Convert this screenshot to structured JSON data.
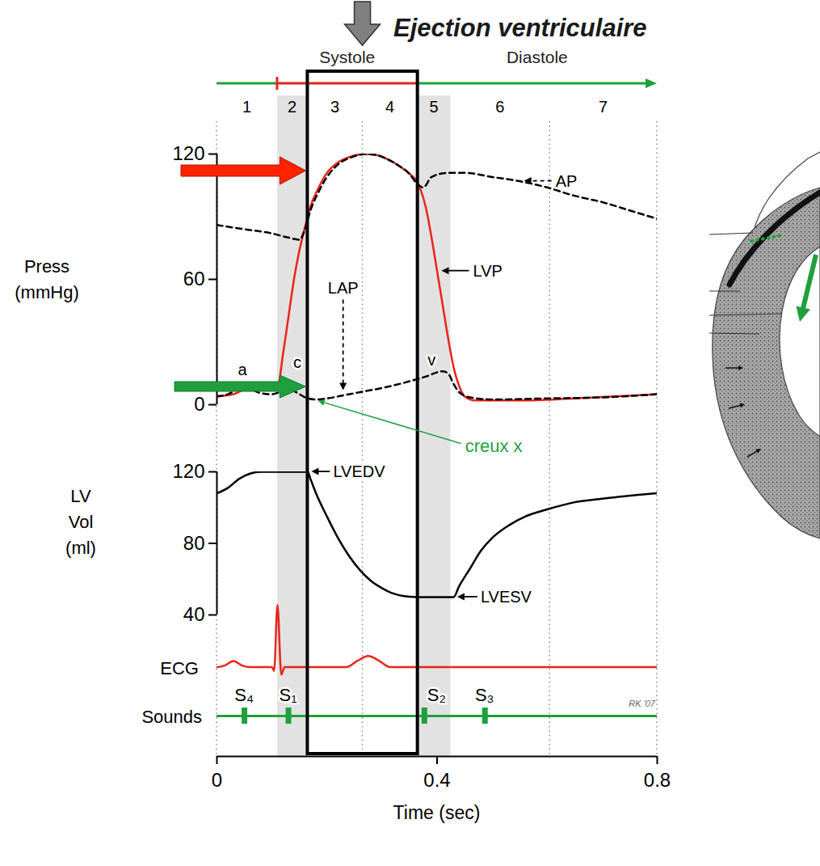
{
  "chart_data": {
    "type": "line",
    "title": "Ejection ventriculaire",
    "xlabel": "Time (sec)",
    "xlim": [
      0,
      0.8
    ],
    "xticks": [
      0,
      0.4,
      0.8
    ],
    "credit": "RK '07",
    "cycle": [
      {
        "label": null,
        "start": 0,
        "end": 0.11,
        "color": "#1fa03c"
      },
      {
        "label": "Systole",
        "start": 0.11,
        "end": 0.365,
        "color": "#e8251b"
      },
      {
        "label": "Diastole",
        "start": 0.365,
        "end": 0.8,
        "color": "#1fa03c"
      }
    ],
    "phases": {
      "labels": [
        "1",
        "2",
        "3",
        "4",
        "5",
        "6",
        "7"
      ],
      "bounds": [
        0,
        0.11,
        0.165,
        0.265,
        0.365,
        0.425,
        0.605,
        0.8
      ],
      "shaded": [
        "2",
        "5"
      ],
      "highlight": [
        "3",
        "4"
      ]
    },
    "panels": [
      {
        "ylabel": "Press (mmHg)",
        "ylim": [
          0,
          120
        ],
        "yticks": [
          0,
          60,
          120
        ],
        "tick_labels": "y",
        "series": [
          {
            "name": "LVP",
            "color": "#e8251b",
            "line_style": "solid",
            "label_x": 0.4,
            "x": [
              0,
              0.03,
              0.06,
              0.09,
              0.11,
              0.12,
              0.13,
              0.14,
              0.15,
              0.16,
              0.17,
              0.185,
              0.2,
              0.22,
              0.245,
              0.27,
              0.29,
              0.31,
              0.33,
              0.35,
              0.363,
              0.37,
              0.38,
              0.39,
              0.4,
              0.41,
              0.42,
              0.43,
              0.44,
              0.45,
              0.47,
              0.55,
              0.65,
              0.8
            ],
            "values": [
              4,
              5,
              8,
              7,
              8,
              24,
              42,
              60,
              74,
              85,
              95,
              104,
              111,
              116,
              119,
              120,
              119.5,
              117.5,
              114.5,
              110.5,
              107,
              103,
              94,
              80,
              64,
              48,
              32,
              18,
              9,
              4,
              2,
              2,
              3,
              5
            ]
          },
          {
            "name": "AP",
            "color": "#000000",
            "line_style": "dashed",
            "label_x": 0.55,
            "x": [
              0,
              0.05,
              0.1,
              0.13,
              0.15,
              0.16,
              0.17,
              0.185,
              0.2,
              0.22,
              0.245,
              0.27,
              0.29,
              0.31,
              0.33,
              0.35,
              0.363,
              0.375,
              0.39,
              0.42,
              0.45,
              0.5,
              0.55,
              0.6,
              0.65,
              0.7,
              0.75,
              0.8
            ],
            "values": [
              86,
              84,
              82,
              80,
              79,
              84,
              93,
              102,
              109,
              115,
              118.5,
              120,
              119.5,
              117.5,
              114.5,
              110.5,
              106,
              104,
              109,
              111,
              111,
              109,
              107,
              104,
              100,
              97,
              93,
              89
            ]
          },
          {
            "name": "LAP",
            "color": "#000000",
            "line_style": "dashed",
            "label_x": 0.23,
            "x": [
              0,
              0.02,
              0.035,
              0.05,
              0.065,
              0.08,
              0.1,
              0.12,
              0.135,
              0.15,
              0.165,
              0.18,
              0.2,
              0.23,
              0.26,
              0.3,
              0.34,
              0.38,
              0.41,
              0.42,
              0.43,
              0.44,
              0.46,
              0.5,
              0.6,
              0.7,
              0.8
            ],
            "values": [
              4,
              5,
              7,
              8,
              7,
              5.5,
              5,
              6.5,
              7,
              5,
              3,
              2.5,
              3,
              4.5,
              6,
              8,
              10.5,
              13.5,
              16,
              15,
              10,
              6,
              3.5,
              2.5,
              3,
              3.5,
              5
            ]
          }
        ],
        "annotations": [
          {
            "text": "a",
            "x": 0.05,
            "y": 8
          },
          {
            "text": "c",
            "x": 0.135,
            "y": 7
          },
          {
            "text": "v",
            "x": 0.41,
            "y": 16
          },
          {
            "text": "creux x",
            "x": 0.18,
            "y": 2.5,
            "color": "#1fa03c"
          }
        ]
      },
      {
        "ylabel": "LV Vol (ml)",
        "ylim": [
          40,
          120
        ],
        "yticks": [
          40,
          80,
          120
        ],
        "tick_labels": "y",
        "series": [
          {
            "color": "#000000",
            "line_style": "solid",
            "x": [
              0,
              0.02,
              0.04,
              0.06,
              0.08,
              0.165,
              0.17,
              0.18,
              0.2,
              0.22,
              0.24,
              0.26,
              0.28,
              0.3,
              0.32,
              0.34,
              0.365,
              0.43,
              0.44,
              0.46,
              0.48,
              0.5,
              0.53,
              0.56,
              0.6,
              0.65,
              0.7,
              0.8
            ],
            "values": [
              108,
              111,
              116,
              119,
              120,
              120,
              116,
              108,
              95,
              83,
              73,
              65,
              59,
              55,
              52,
              50.5,
              50,
              50,
              56,
              66,
              76,
              83,
              90,
              95,
              99,
              103,
              105,
              108
            ]
          }
        ],
        "annotations": [
          {
            "text": "LVEDV",
            "x": 0.165,
            "y": 120
          },
          {
            "text": "LVESV",
            "x": 0.43,
            "y": 50
          }
        ]
      },
      {
        "ylabel": "ECG",
        "ylim": [
          -0.2,
          1.1
        ],
        "tick_labels": false,
        "series": [
          {
            "color": "#e8251b",
            "line_style": "solid",
            "x": [
              0,
              0.015,
              0.03,
              0.045,
              0.06,
              0.1,
              0.104,
              0.11,
              0.117,
              0.123,
              0.14,
              0.235,
              0.255,
              0.275,
              0.295,
              0.315,
              0.8
            ],
            "values": [
              0,
              0.03,
              0.1,
              0.03,
              0,
              0,
              -0.06,
              1.0,
              -0.12,
              0,
              0,
              0,
              0.1,
              0.18,
              0.1,
              0,
              0
            ]
          }
        ]
      },
      {
        "type": "event",
        "ylabel": "Sounds",
        "tick_labels": false,
        "color": "#1fa03c",
        "labels": [
          "S₄",
          "S₁",
          "S₂",
          "S₃"
        ],
        "x": [
          0.05,
          0.13,
          0.377,
          0.487
        ]
      }
    ]
  }
}
